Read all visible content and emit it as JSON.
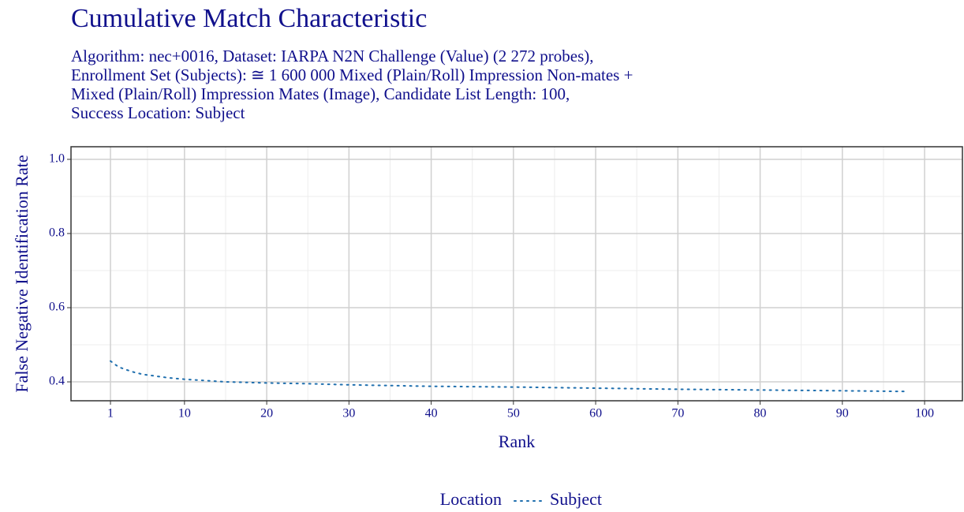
{
  "chart_data": {
    "type": "line",
    "title": "Cumulative Match Characteristic",
    "subtitle": [
      "Algorithm: nec+0016, Dataset: IARPA N2N Challenge (Value) (2 272 probes),",
      "Enrollment Set (Subjects): ≅ 1 600 000 Mixed (Plain/Roll) Impression Non-mates +",
      "Mixed (Plain/Roll) Impression Mates (Image), Candidate List Length: 100,",
      "Success Location: Subject"
    ],
    "x_label": "Rank",
    "y_label": "False Negative Identification Rate",
    "legend_title": "Location",
    "x": [
      1,
      2,
      3,
      4,
      5,
      6,
      7,
      8,
      9,
      10,
      15,
      20,
      25,
      30,
      40,
      50,
      60,
      70,
      80,
      90,
      98
    ],
    "series": [
      {
        "name": "Subject",
        "color": "#1f6fae",
        "values": [
          0.456,
          0.44,
          0.432,
          0.425,
          0.42,
          0.417,
          0.414,
          0.411,
          0.409,
          0.407,
          0.4,
          0.397,
          0.395,
          0.392,
          0.388,
          0.386,
          0.383,
          0.38,
          0.378,
          0.376,
          0.374
        ]
      }
    ],
    "xlim": [
      -3.8,
      104.6
    ],
    "ylim": [
      0.349,
      1.034
    ],
    "xticks": [
      1,
      10,
      20,
      30,
      40,
      50,
      60,
      70,
      80,
      90,
      100
    ],
    "yticks": [
      0.4,
      0.6,
      0.8,
      {
        "value": 1,
        "label": "1.0"
      }
    ],
    "grid": true,
    "legend_position": "bottom"
  }
}
